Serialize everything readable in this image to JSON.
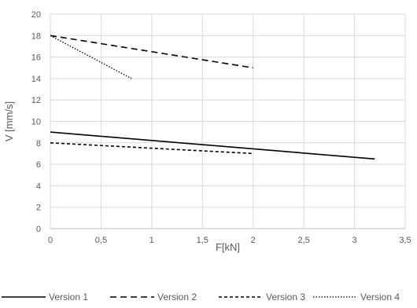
{
  "chart_data": {
    "type": "line",
    "title": "",
    "xlabel": "F[kN]",
    "ylabel": "V [mm/s]",
    "xlim": [
      0,
      3.5
    ],
    "ylim": [
      0,
      20
    ],
    "x_ticks": [
      "0",
      "0,5",
      "1",
      "1,5",
      "2",
      "2,5",
      "3",
      "3,5"
    ],
    "y_ticks": [
      "0",
      "2",
      "4",
      "6",
      "8",
      "10",
      "12",
      "14",
      "16",
      "18",
      "20"
    ],
    "grid": "horizontal and vertical",
    "legend_position": "bottom",
    "series": [
      {
        "name": "Version 1",
        "style": "solid",
        "color": "#000000",
        "x": [
          0,
          3.2
        ],
        "y": [
          9,
          6.5
        ]
      },
      {
        "name": "Version 2",
        "style": "dashed",
        "color": "#000000",
        "x": [
          0,
          2
        ],
        "y": [
          18,
          15
        ]
      },
      {
        "name": "Version 3",
        "style": "short-dashed",
        "color": "#000000",
        "x": [
          0,
          2
        ],
        "y": [
          8,
          7
        ]
      },
      {
        "name": "Version 4",
        "style": "dotted",
        "color": "#000000",
        "x": [
          0,
          0.8
        ],
        "y": [
          18,
          14
        ]
      }
    ]
  }
}
